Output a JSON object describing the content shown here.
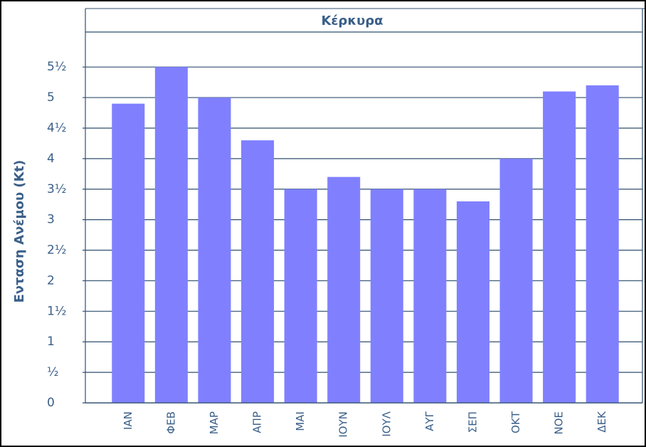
{
  "chart_data": {
    "type": "bar",
    "title": "Κέρκυρα",
    "ylabel": "Ενταση Ανέμου (Kt)",
    "categories": [
      "ΙΑΝ",
      "ΦΕΒ",
      "ΜΑΡ",
      "ΑΠΡ",
      "ΜΑΙ",
      "ΙΟΥΝ",
      "ΙΟΥΛ",
      "ΑΥΓ",
      "ΣΕΠ",
      "ΟΚΤ",
      "ΝΟΕ",
      "ΔΕΚ"
    ],
    "values": [
      4.9,
      5.5,
      5.0,
      4.3,
      3.5,
      3.7,
      3.5,
      3.5,
      3.3,
      4.0,
      5.1,
      5.2
    ],
    "color": "#8080ff",
    "ylim": [
      0,
      6.05
    ],
    "yticks": [
      0,
      {
        "value": 0.5,
        "label": "½"
      },
      1,
      {
        "value": 1.5,
        "label": "1½"
      },
      2,
      {
        "value": 2.5,
        "label": "2½"
      },
      3,
      {
        "value": 3.5,
        "label": "3½"
      },
      4,
      {
        "value": 4.5,
        "label": "4½"
      },
      5,
      {
        "value": 5.5,
        "label": "5½"
      }
    ],
    "grid": true
  }
}
